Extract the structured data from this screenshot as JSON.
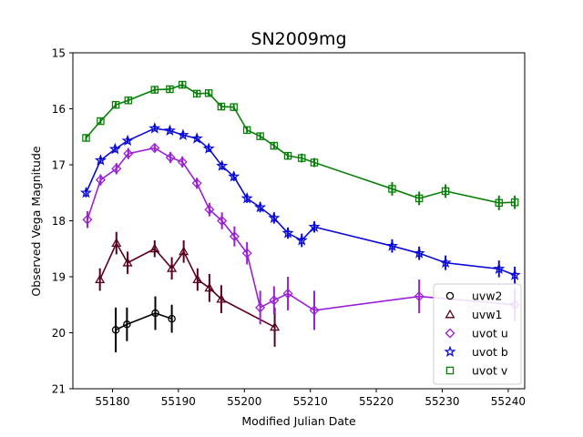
{
  "chart_data": {
    "type": "scatter",
    "title": "SN2009mg",
    "xlabel": "Modified Julian Date",
    "ylabel": "Observed Vega Magnitude",
    "xlim": [
      55174,
      55242.5
    ],
    "ylim": [
      21,
      15
    ],
    "y_inverted": true,
    "xticks": [
      55180,
      55190,
      55200,
      55210,
      55220,
      55230,
      55240
    ],
    "yticks": [
      15,
      16,
      17,
      18,
      19,
      20,
      21
    ],
    "grid": false,
    "legend_position": "lower-right",
    "series": [
      {
        "name": "uvw2",
        "color": "#000000",
        "marker": "circle",
        "connected": true,
        "x": [
          55180.5,
          55182.2,
          55186.5,
          55189.0
        ],
        "y": [
          19.95,
          19.85,
          19.65,
          19.75
        ],
        "err": [
          0.4,
          0.3,
          0.3,
          0.25
        ]
      },
      {
        "name": "uvw1",
        "color": "#5a0020",
        "marker": "triangle",
        "connected": true,
        "x": [
          55178.1,
          55180.6,
          55182.3,
          55186.4,
          55189.0,
          55190.8,
          55192.9,
          55194.7,
          55196.5,
          55204.6
        ],
        "y": [
          19.05,
          18.4,
          18.75,
          18.5,
          18.85,
          18.55,
          19.05,
          19.2,
          19.4,
          19.9
        ],
        "err": [
          0.2,
          0.2,
          0.2,
          0.15,
          0.2,
          0.2,
          0.2,
          0.25,
          0.25,
          0.35
        ]
      },
      {
        "name": "uvot u",
        "color": "#9b1fd6",
        "marker": "diamond",
        "connected": true,
        "x": [
          55176.2,
          55178.2,
          55180.6,
          55182.4,
          55186.4,
          55188.8,
          55190.6,
          55192.8,
          55194.7,
          55196.6,
          55198.5,
          55200.4,
          55202.4,
          55204.5,
          55206.6,
          55210.6,
          55226.5,
          55241.0
        ],
        "y": [
          17.98,
          17.27,
          17.07,
          16.8,
          16.7,
          16.87,
          16.95,
          17.33,
          17.8,
          18.0,
          18.28,
          18.58,
          19.55,
          19.42,
          19.3,
          19.6,
          19.35,
          19.5
        ],
        "err": [
          0.15,
          0.1,
          0.1,
          0.1,
          0.08,
          0.1,
          0.1,
          0.1,
          0.12,
          0.15,
          0.18,
          0.2,
          0.3,
          0.25,
          0.3,
          0.35,
          0.3,
          0.3
        ]
      },
      {
        "name": "uvot b",
        "color": "#0a0ad8",
        "marker": "star",
        "connected": true,
        "x": [
          55176.0,
          55178.2,
          55180.4,
          55182.3,
          55186.4,
          55188.7,
          55190.7,
          55192.8,
          55194.6,
          55196.6,
          55198.4,
          55200.4,
          55202.4,
          55204.5,
          55206.6,
          55208.7,
          55210.6,
          55222.4,
          55226.5,
          55230.5,
          55238.6,
          55241.0
        ],
        "y": [
          17.5,
          16.92,
          16.72,
          16.57,
          16.35,
          16.39,
          16.47,
          16.53,
          16.71,
          17.02,
          17.21,
          17.6,
          17.76,
          17.95,
          18.22,
          18.35,
          18.11,
          18.45,
          18.58,
          18.75,
          18.86,
          18.97
        ],
        "err": [
          0.08,
          0.06,
          0.06,
          0.05,
          0.05,
          0.05,
          0.05,
          0.05,
          0.06,
          0.07,
          0.08,
          0.08,
          0.09,
          0.1,
          0.1,
          0.12,
          0.1,
          0.12,
          0.12,
          0.13,
          0.15,
          0.15
        ]
      },
      {
        "name": "uvot v",
        "color": "#088008",
        "marker": "square",
        "connected": true,
        "x": [
          55176.0,
          55178.2,
          55180.5,
          55182.4,
          55186.4,
          55188.7,
          55190.6,
          55192.8,
          55194.6,
          55196.5,
          55198.4,
          55200.4,
          55202.4,
          55204.5,
          55206.6,
          55208.7,
          55210.6,
          55222.4,
          55226.5,
          55230.5,
          55238.6,
          55241.0
        ],
        "y": [
          16.52,
          16.22,
          15.93,
          15.85,
          15.66,
          15.65,
          15.57,
          15.73,
          15.72,
          15.96,
          15.97,
          16.38,
          16.49,
          16.66,
          16.84,
          16.88,
          16.96,
          17.43,
          17.6,
          17.47,
          17.68,
          17.67
        ],
        "err": [
          0.05,
          0.05,
          0.05,
          0.05,
          0.05,
          0.05,
          0.05,
          0.05,
          0.05,
          0.05,
          0.05,
          0.06,
          0.06,
          0.07,
          0.07,
          0.08,
          0.08,
          0.12,
          0.12,
          0.12,
          0.13,
          0.12
        ]
      }
    ]
  }
}
